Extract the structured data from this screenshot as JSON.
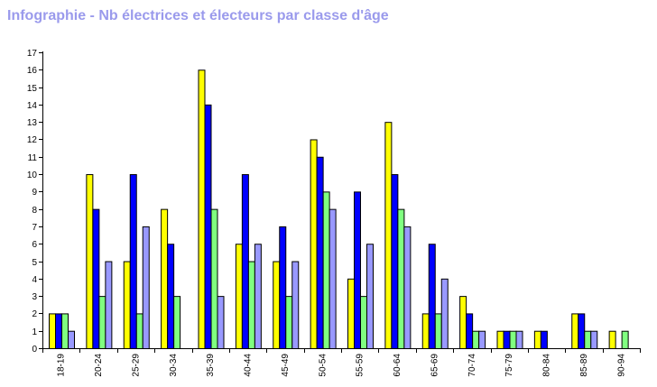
{
  "chart_data": {
    "type": "bar",
    "title": "Infographie - Nb électrices et électeurs par classe d'âge",
    "xlabel": "",
    "ylabel": "",
    "ylim": [
      0,
      17
    ],
    "yticks": [
      "0",
      "1",
      "2",
      "3",
      "4",
      "5",
      "6",
      "7",
      "8",
      "9",
      "10",
      "11",
      "12",
      "13",
      "14",
      "15",
      "16",
      "17"
    ],
    "grid": false,
    "legend": "none",
    "categories": [
      "18-19",
      "20-24",
      "25-29",
      "30-34",
      "35-39",
      "40-44",
      "45-49",
      "50-54",
      "55-59",
      "60-64",
      "65-69",
      "70-74",
      "75-79",
      "80-84",
      "85-89",
      "90-94"
    ],
    "series": [
      {
        "color": "#ffff00",
        "values": [
          2,
          10,
          5,
          8,
          16,
          6,
          5,
          12,
          4,
          13,
          2,
          3,
          1,
          1,
          2,
          1
        ]
      },
      {
        "color": "#0000ff",
        "values": [
          2,
          8,
          10,
          6,
          14,
          10,
          7,
          11,
          9,
          10,
          6,
          2,
          1,
          1,
          2,
          0
        ]
      },
      {
        "color": "#80ff80",
        "values": [
          2,
          3,
          2,
          3,
          8,
          5,
          3,
          9,
          3,
          8,
          2,
          1,
          1,
          0,
          1,
          1
        ]
      },
      {
        "color": "#9999ff",
        "values": [
          1,
          5,
          7,
          0,
          3,
          6,
          5,
          8,
          6,
          7,
          4,
          1,
          1,
          0,
          1,
          0
        ]
      }
    ]
  }
}
